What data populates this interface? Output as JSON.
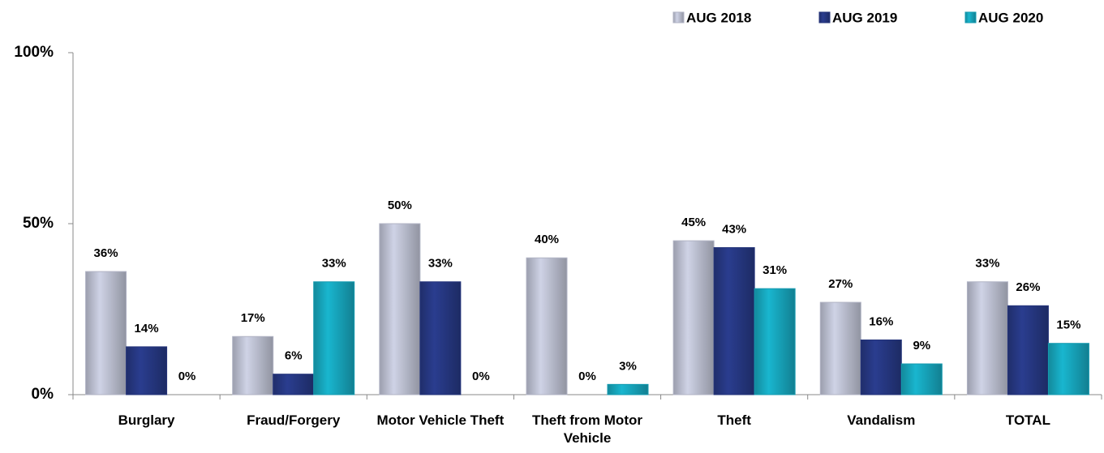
{
  "chart_data": {
    "type": "bar",
    "categories": [
      "Burglary",
      "Fraud/Forgery",
      "Motor Vehicle Theft",
      "Theft from Motor Vehicle",
      "Theft",
      "Vandalism",
      "TOTAL"
    ],
    "series": [
      {
        "name": "AUG 2018",
        "color": "#cfd3e6",
        "values": [
          36,
          17,
          50,
          40,
          45,
          27,
          33
        ],
        "value_labels": [
          "36%",
          "17%",
          "50%",
          "40%",
          "45%",
          "27%",
          "33%"
        ]
      },
      {
        "name": "AUG 2019",
        "color": "#2a3d8f",
        "values": [
          14,
          6,
          33,
          0,
          43,
          16,
          26
        ],
        "value_labels": [
          "14%",
          "6%",
          "33%",
          "0%",
          "43%",
          "16%",
          "26%"
        ]
      },
      {
        "name": "AUG 2020",
        "color": "#19b6cf",
        "values": [
          0,
          33,
          0,
          3,
          31,
          9,
          15
        ],
        "value_labels": [
          "0%",
          "33%",
          "0%",
          "3%",
          "31%",
          "9%",
          "15%"
        ]
      }
    ],
    "ylim": [
      0,
      100
    ],
    "yticks": [
      {
        "value": 0,
        "label": "0%"
      },
      {
        "value": 50,
        "label": "50%"
      },
      {
        "value": 100,
        "label": "100%"
      }
    ],
    "legend": "top-right"
  }
}
